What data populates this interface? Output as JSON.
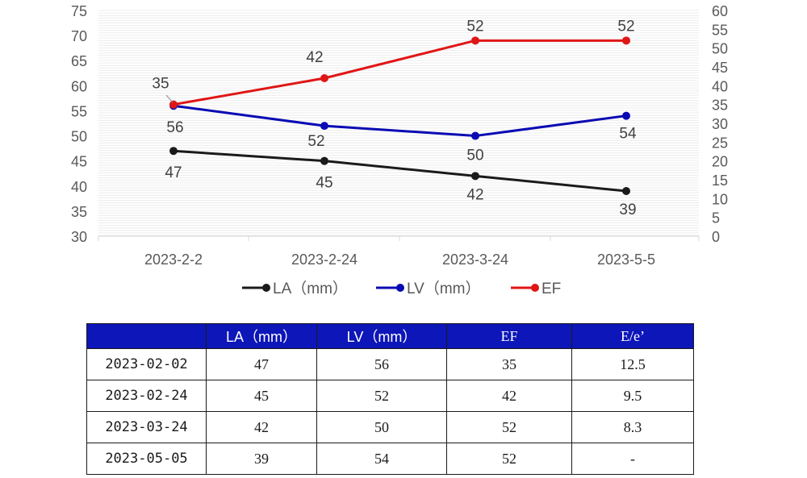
{
  "chart_data": {
    "type": "line",
    "categories": [
      "2023-2-2",
      "2023-2-24",
      "2023-3-24",
      "2023-5-5"
    ],
    "y_left": {
      "min": 30,
      "max": 75,
      "step": 5
    },
    "y_right": {
      "min": 0,
      "max": 60,
      "step": 5
    },
    "grid": true,
    "legend_position": "bottom",
    "series": [
      {
        "name": "LA（mm）",
        "axis": "left",
        "color": "#1a1a1a",
        "values": [
          47,
          45,
          42,
          39
        ]
      },
      {
        "name": "LV（mm）",
        "axis": "left",
        "color": "#0a0ab4",
        "values": [
          56,
          52,
          50,
          54
        ]
      },
      {
        "name": "EF",
        "axis": "right",
        "color": "#e01616",
        "values": [
          35,
          42,
          52,
          52
        ]
      }
    ]
  },
  "table": {
    "headers": [
      "",
      "LA（mm）",
      "LV（mm）",
      "EF",
      "E/e’"
    ],
    "rows": [
      [
        "2023-02-02",
        "47",
        "56",
        "35",
        "12.5"
      ],
      [
        "2023-02-24",
        "45",
        "52",
        "42",
        "9.5"
      ],
      [
        "2023-03-24",
        "42",
        "50",
        "52",
        "8.3"
      ],
      [
        "2023-05-05",
        "39",
        "54",
        "52",
        "-"
      ]
    ]
  }
}
